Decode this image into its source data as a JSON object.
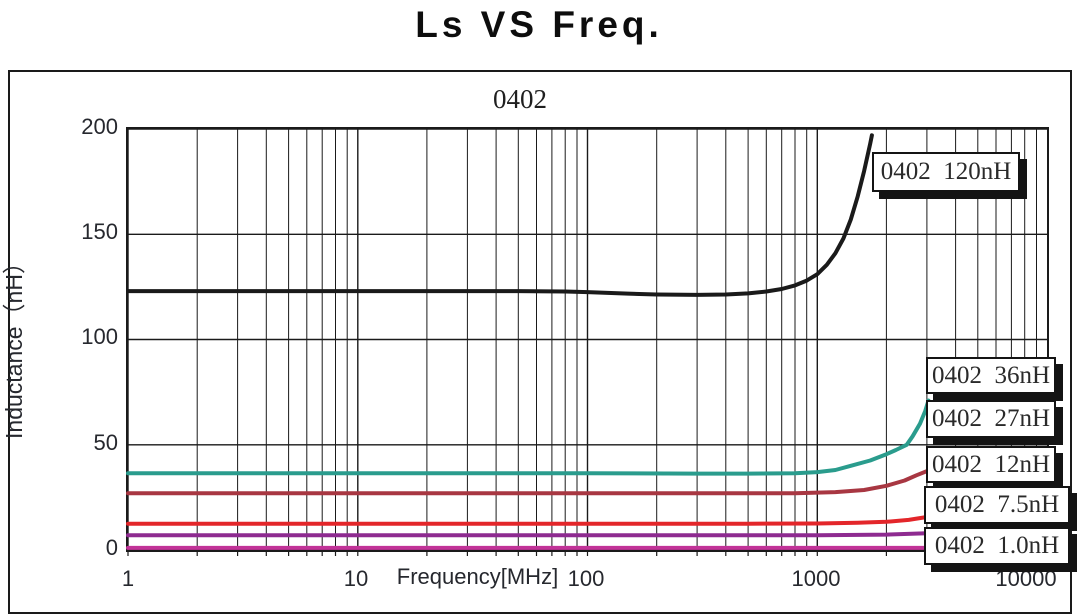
{
  "page": {
    "title": "Ls VS Freq."
  },
  "chart_data": {
    "type": "line",
    "title": "0402",
    "xlabel": "Frequency[MHz]",
    "ylabel": "Inductance（nH）",
    "x_scale": "log",
    "xlim": [
      1,
      10000
    ],
    "ylim": [
      0,
      200
    ],
    "x_ticks": [
      "1",
      "10",
      "100",
      "1000",
      "10000"
    ],
    "y_ticks": [
      "0",
      "50",
      "100",
      "150",
      "200"
    ],
    "grid": "black major+minor vertical log gridlines, major horizontal gridlines every 50 nH, full plot border",
    "legend_position": "floating boxes at right edge, white fill, black border, hard black drop shadow",
    "series": [
      {
        "name": "0402  120nH",
        "color": "#1a1a1a",
        "width": 4,
        "points": [
          [
            1,
            123
          ],
          [
            2,
            123
          ],
          [
            5,
            123
          ],
          [
            10,
            123
          ],
          [
            20,
            123
          ],
          [
            50,
            123
          ],
          [
            80,
            122.8
          ],
          [
            100,
            122.5
          ],
          [
            150,
            121.8
          ],
          [
            200,
            121.4
          ],
          [
            300,
            121.2
          ],
          [
            400,
            121.4
          ],
          [
            500,
            121.9
          ],
          [
            600,
            122.8
          ],
          [
            700,
            124
          ],
          [
            800,
            125.7
          ],
          [
            900,
            128
          ],
          [
            1000,
            131
          ],
          [
            1100,
            135.5
          ],
          [
            1200,
            141
          ],
          [
            1300,
            148
          ],
          [
            1400,
            157
          ],
          [
            1500,
            168
          ],
          [
            1600,
            180
          ],
          [
            1700,
            193
          ],
          [
            1730,
            197
          ]
        ]
      },
      {
        "name": "0402  36nH",
        "color": "#2a9c8d",
        "width": 4,
        "points": [
          [
            1,
            36.5
          ],
          [
            10,
            36.5
          ],
          [
            100,
            36.5
          ],
          [
            300,
            36.3
          ],
          [
            500,
            36.3
          ],
          [
            800,
            36.5
          ],
          [
            1000,
            37
          ],
          [
            1200,
            38
          ],
          [
            1400,
            40
          ],
          [
            1700,
            42.5
          ],
          [
            2000,
            45.5
          ],
          [
            2200,
            47.5
          ],
          [
            2450,
            50
          ],
          [
            2600,
            54
          ],
          [
            2800,
            60
          ],
          [
            2950,
            66
          ],
          [
            3050,
            71
          ]
        ]
      },
      {
        "name": "0402  27nH",
        "color": "#a83742",
        "width": 4,
        "points": [
          [
            1,
            27
          ],
          [
            10,
            27
          ],
          [
            100,
            27
          ],
          [
            500,
            27
          ],
          [
            800,
            27
          ],
          [
            1200,
            27.5
          ],
          [
            1600,
            28.5
          ],
          [
            2000,
            30.5
          ],
          [
            2400,
            33
          ],
          [
            2700,
            35.5
          ],
          [
            3000,
            37.5
          ]
        ]
      },
      {
        "name": "0402  12nH",
        "color": "#e3262a",
        "width": 4,
        "points": [
          [
            1,
            12.5
          ],
          [
            10,
            12.5
          ],
          [
            100,
            12.5
          ],
          [
            500,
            12.5
          ],
          [
            1000,
            12.6
          ],
          [
            1500,
            12.9
          ],
          [
            2000,
            13.4
          ],
          [
            2500,
            14.3
          ],
          [
            3000,
            15.7
          ]
        ]
      },
      {
        "name": "0402  7.5nH",
        "color": "#8e2b90",
        "width": 4,
        "points": [
          [
            1,
            7
          ],
          [
            10,
            7
          ],
          [
            100,
            7
          ],
          [
            1000,
            7
          ],
          [
            2000,
            7.3
          ],
          [
            3000,
            8
          ]
        ]
      },
      {
        "name": "0402  1.0nH",
        "color": "#c23398",
        "width": 4,
        "points": [
          [
            1,
            1
          ],
          [
            10,
            1
          ],
          [
            100,
            1
          ],
          [
            1000,
            1
          ],
          [
            3000,
            1
          ]
        ]
      }
    ],
    "legend": [
      {
        "label": "0402  120nH"
      },
      {
        "label": "0402  36nH"
      },
      {
        "label": "0402  27nH"
      },
      {
        "label": "0402  12nH"
      },
      {
        "label": "0402  7.5nH"
      },
      {
        "label": "0402  1.0nH"
      }
    ]
  }
}
